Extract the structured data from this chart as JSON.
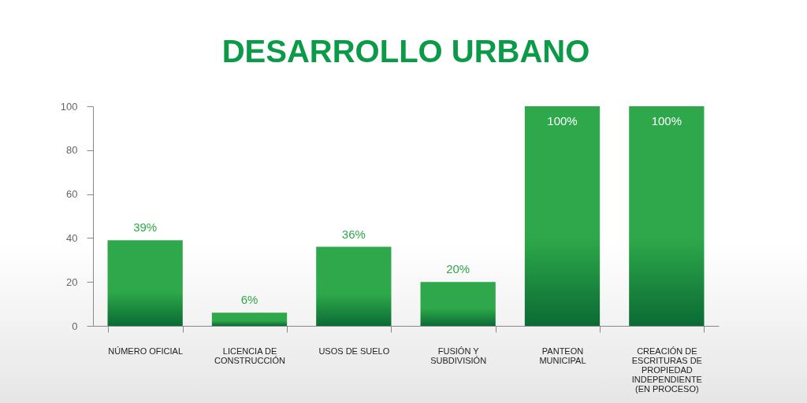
{
  "chart_data": {
    "type": "bar",
    "title": "DESARROLLO URBANO",
    "categories": [
      "NÚMERO OFICIAL",
      "LICENCIA DE CONSTRUCCIÓN",
      "USOS DE SUELO",
      "FUSIÓN Y SUBDIVISIÓN",
      "PANTEON MUNICIPAL",
      "CREACIÓN DE ESCRITURAS DE PROPIEDAD INDEPENDIENTE (EN PROCESO)"
    ],
    "values": [
      39,
      6,
      36,
      20,
      100,
      100
    ],
    "value_labels": [
      "39%",
      "6%",
      "36%",
      "20%",
      "100%",
      "100%"
    ],
    "color": "#2ea84a",
    "ylim": [
      0,
      100
    ],
    "yticks": [
      0,
      20,
      40,
      60,
      80,
      100
    ],
    "grid": false
  }
}
